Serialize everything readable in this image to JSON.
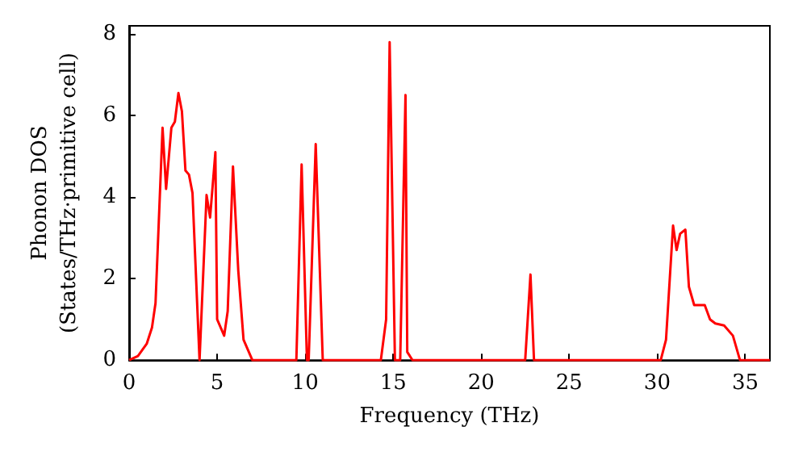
{
  "chart_data": {
    "type": "line",
    "xlabel": "Frequency (THz)",
    "ylabel": "Phonon DOS\n(States/THz·primitive cell)",
    "x": [
      0,
      0.5,
      1,
      1.3,
      1.5,
      1.9,
      2.1,
      2.4,
      2.6,
      2.8,
      3.0,
      3.2,
      3.4,
      3.6,
      4.0,
      4.4,
      4.6,
      4.9,
      5.0,
      5.4,
      5.6,
      5.9,
      6.2,
      6.5,
      7.0,
      9.5,
      9.8,
      10.1,
      10.2,
      10.6,
      11.0,
      14.3,
      14.6,
      14.8,
      15.1,
      15.4,
      15.7,
      15.8,
      16.1,
      22.5,
      22.8,
      23.0,
      30.2,
      30.5,
      30.9,
      31.1,
      31.3,
      31.6,
      31.8,
      32.1,
      32.7,
      33.0,
      33.3,
      33.8,
      34.3,
      34.7,
      36.4
    ],
    "series": [
      {
        "color": "#ff0000",
        "values": [
          0,
          0.1,
          0.4,
          0.8,
          1.4,
          5.7,
          4.2,
          5.7,
          5.85,
          6.55,
          6.1,
          4.65,
          4.55,
          4.1,
          0,
          4.05,
          3.5,
          5.1,
          1.0,
          0.6,
          1.2,
          4.75,
          2.2,
          0.5,
          0,
          0,
          4.8,
          0,
          0,
          5.3,
          0,
          0,
          1.0,
          7.8,
          0,
          0,
          6.5,
          0.2,
          0,
          0,
          2.1,
          0,
          0,
          0.5,
          3.3,
          2.7,
          3.1,
          3.2,
          1.8,
          1.35,
          1.35,
          1.0,
          0.9,
          0.85,
          0.6,
          0,
          0
        ]
      }
    ],
    "xlim": [
      0,
      36.4
    ],
    "ylim": [
      0,
      8.2
    ],
    "xticks": [
      0,
      5,
      10,
      15,
      20,
      25,
      30,
      35
    ],
    "yticks": [
      0,
      2,
      4,
      6,
      8
    ],
    "grid": false,
    "marker": "none",
    "line_style": "solid"
  }
}
